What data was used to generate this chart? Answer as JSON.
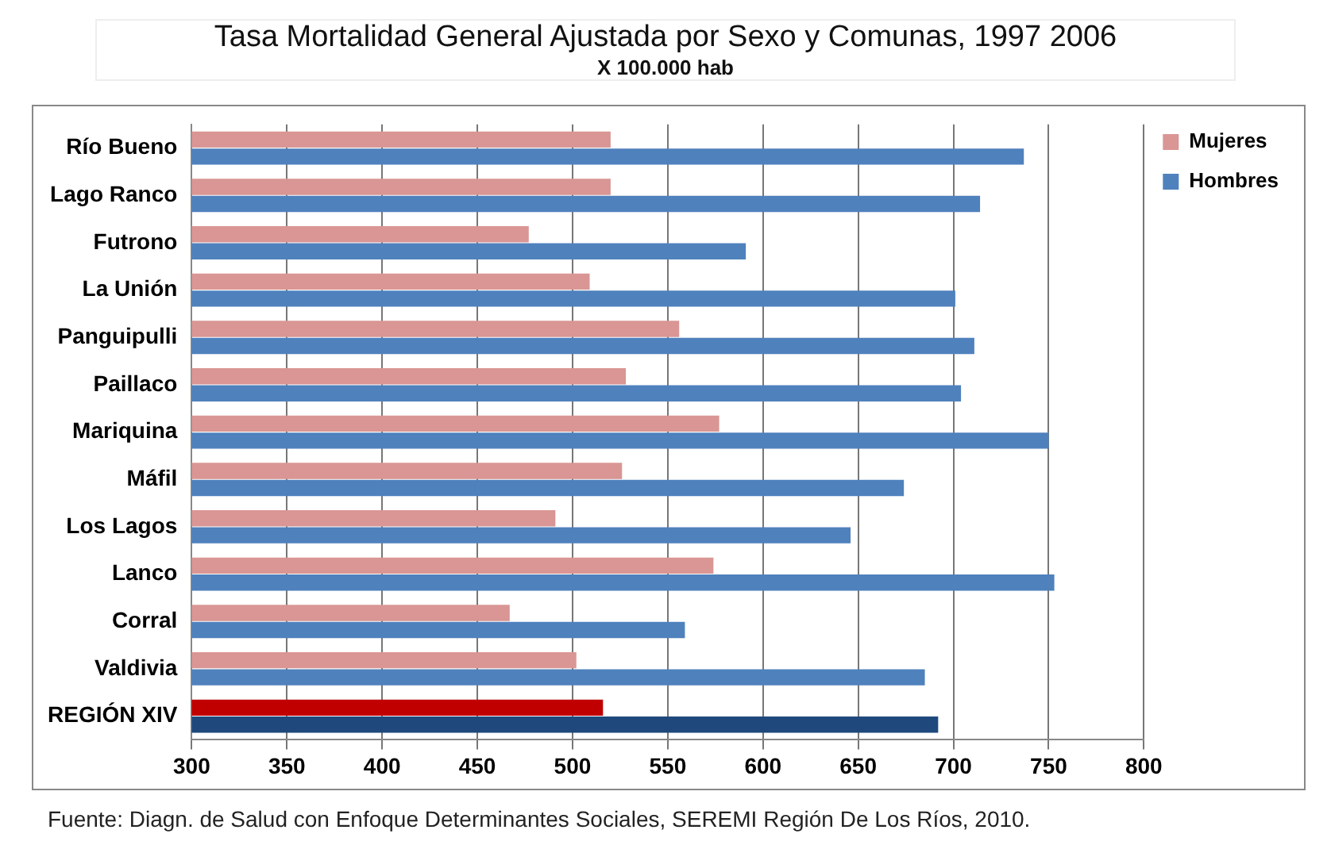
{
  "chart_data": {
    "type": "bar",
    "orientation": "horizontal",
    "title": "Tasa Mortalidad General Ajustada por Sexo y Comunas, 1997 2006",
    "subtitle": "X 100.000 hab",
    "categories": [
      "Río Bueno",
      "Lago Ranco",
      "Futrono",
      "La Unión",
      "Panguipulli",
      "Paillaco",
      "Mariquina",
      "Máfil",
      "Los Lagos",
      "Lanco",
      "Corral",
      "Valdivia",
      "REGIÓN XIV"
    ],
    "series": [
      {
        "name": "Mujeres",
        "color": "#d99694",
        "colors": [
          "#d99694",
          "#d99694",
          "#d99694",
          "#d99694",
          "#d99694",
          "#d99694",
          "#d99694",
          "#d99694",
          "#d99694",
          "#d99694",
          "#d99694",
          "#d99694",
          "#c00000"
        ],
        "values": [
          520,
          520,
          477,
          509,
          556,
          528,
          577,
          526,
          491,
          574,
          467,
          502,
          516
        ]
      },
      {
        "name": "Hombres",
        "color": "#4f81bd",
        "colors": [
          "#4f81bd",
          "#4f81bd",
          "#4f81bd",
          "#4f81bd",
          "#4f81bd",
          "#4f81bd",
          "#4f81bd",
          "#4f81bd",
          "#4f81bd",
          "#4f81bd",
          "#4f81bd",
          "#4f81bd",
          "#1f497d"
        ],
        "values": [
          737,
          714,
          591,
          701,
          711,
          704,
          750,
          674,
          646,
          753,
          559,
          685,
          692
        ]
      }
    ],
    "xlim": [
      300,
      800
    ],
    "xticks": [
      300,
      350,
      400,
      450,
      500,
      550,
      600,
      650,
      700,
      750,
      800
    ],
    "grid": "x",
    "legend": "right",
    "annotations": [
      "Fuente: Diagn. de Salud con Enfoque Determinantes Sociales, SEREMI Región De Los Ríos, 2010."
    ]
  }
}
